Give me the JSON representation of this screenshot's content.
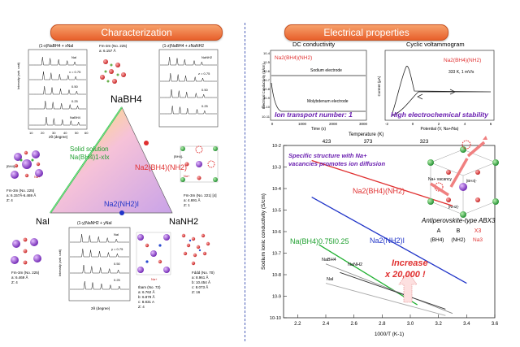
{
  "headers": {
    "left": "Characterization",
    "right": "Electrical properties"
  },
  "triangle": {
    "top": "NaBH4",
    "left": "NaI",
    "right": "NaNH2",
    "solid_solution_line1": "Solid solution",
    "solid_solution_line2": "Na(BH4)1-xIx",
    "na2_bh4_nh2": "Na2(BH4)(NH2)",
    "na2_nh2_i": "Na2(NH2)I"
  },
  "xrd": {
    "top_left_title": "(1-x)NaBH4 + xNaI",
    "top_right_title": "(1-z)NaBH4 + zNaNH2",
    "bottom_title": "(1-y)NaNH2 + yNaI",
    "ylabel": "Intensity (arb. unit)",
    "xlabel": "2θ (degree)",
    "top_left_series": [
      "NaI",
      "x = 0.75",
      "0.50",
      "0.25",
      "NaBH4"
    ],
    "top_right_series": [
      "NaNH2",
      "z = 0.75",
      "0.50",
      "0.25"
    ],
    "bottom_series": [
      "NaI",
      "y = 0.75",
      "0.50",
      "0.25"
    ],
    "ticks": [
      "10",
      "20",
      "30",
      "40",
      "50",
      "60"
    ]
  },
  "structures": {
    "s1": {
      "group": "Fm-3m (No. 225)",
      "a": "a: 6.157 Å"
    },
    "s2": {
      "group": "Fm-3m (No. 225)",
      "a": "a: 6.157Å-6.469 Å",
      "z": "Z: 4"
    },
    "s3": {
      "group": "Fm-3m (No. 221) [4]",
      "a": "a: 4.691 Å",
      "z": "Z: 1"
    },
    "s4": {
      "group": "Fm-3m (No. 225)",
      "a": "a: 6.469 Å",
      "z": "Z: 4"
    },
    "s5": {
      "group": "Ibam (No. 72)",
      "a": "a: 6.762 Å",
      "b": "b: 6.879 Å",
      "c": "c: 8.831 A",
      "z": "Z: 4"
    },
    "s6": {
      "group": "Fddd (No. 70)",
      "a": "a: 8.961 Å",
      "b": "b: 10.454 Å",
      "c": "c: 8.073 Å",
      "z": "Z: 16"
    },
    "bh4_label": "[BH4]-",
    "na_label": "Na+"
  },
  "dc": {
    "title": "DC conductivity",
    "compound": "Na2(BH4)(NH2)",
    "curve1": "Sodium electrode",
    "curve2": "Molybdenum electrode",
    "xlabel": "Time (s)",
    "ylabel": "Electrical Conductivity (S/cm)",
    "xticks": [
      "0",
      "1000",
      "2000",
      "3000"
    ],
    "yticks": [
      "10-4",
      "10-5",
      "10-6",
      "10-7",
      "10-8",
      "10-9",
      "10-10",
      "10-11"
    ],
    "caption": "Ion transport number: 1"
  },
  "cv": {
    "title": "Cyclic voltammogram",
    "compound": "Na2(BH4)(NH2)",
    "condition": "333 K, 1 mV/s",
    "xlabel": "Potential (V, Na+/Na)",
    "ylabel": "Current (μA)",
    "xticks": [
      "-2",
      "0",
      "2",
      "4",
      "6"
    ],
    "caption": "High electrochemical stability"
  },
  "main_plot": {
    "top_axis_label": "Temperature (K)",
    "top_ticks": [
      "423",
      "373",
      "323"
    ],
    "ylabel": "Sodium ionic conductivity (S/cm)",
    "xlabel": "1000/T (K-1)",
    "xticks": [
      "2.2",
      "2.4",
      "2.6",
      "2.8",
      "3.0",
      "3.2",
      "3.4",
      "3.6"
    ],
    "yticks": [
      "10-2",
      "10-3",
      "10-4",
      "10-5",
      "10-6",
      "10-7",
      "10-8",
      "10-9",
      "10-10"
    ],
    "note_line1": "Specific structure with Na+",
    "note_line2": "vacancies promotes ion diffusion",
    "series_labels": {
      "na2bh4nh2": "Na2(BH4)(NH2)",
      "na2nh2i": "Na2(NH2)I",
      "nabh4i": "Na(BH4)0.75I0.25",
      "nabh4": "NaBH4",
      "nanh2": "NaNH2",
      "nai": "NaI"
    },
    "increase_line1": "Increase",
    "increase_line2": "x 20,000 !"
  },
  "chart_data": {
    "type": "line",
    "xlabel": "1000/T (K-1)",
    "ylabel": "Sodium ionic conductivity (S/cm)",
    "xlim": [
      2.1,
      3.6
    ],
    "ylim": [
      -10,
      -2
    ],
    "y_scale": "log10",
    "series": [
      {
        "name": "Na2(BH4)(NH2)",
        "color": "#e03030",
        "x": [
          2.3,
          3.3
        ],
        "y": [
          -2.7,
          -4.8
        ]
      },
      {
        "name": "Na2(NH2)I",
        "color": "#2034c8",
        "x": [
          2.3,
          3.4
        ],
        "y": [
          -4.4,
          -8.4
        ]
      },
      {
        "name": "Na(BH4)0.75I0.25",
        "color": "#20b030",
        "x": [
          2.35,
          3.05
        ],
        "y": [
          -6.6,
          -9.4
        ]
      },
      {
        "name": "NaBH4",
        "color": "#888888",
        "x": [
          2.4,
          3.3
        ],
        "y": [
          -7.5,
          -9.8
        ]
      },
      {
        "name": "NaNH2",
        "color": "#333333",
        "x": [
          2.5,
          3.25
        ],
        "y": [
          -7.9,
          -9.6
        ]
      },
      {
        "name": "NaI",
        "color": "#aaaaaa",
        "x": [
          2.4,
          3.25
        ],
        "y": [
          -8.4,
          -9.9
        ]
      }
    ]
  },
  "antiperovskite": {
    "title": "Antiperovskite-type ABX3",
    "cols": [
      "A",
      "B",
      "X3"
    ],
    "values": [
      "(BH4)",
      "(NH2)",
      "Na3"
    ],
    "vacancy": "Na+ vacancy",
    "bh4": "[BH4]-",
    "nh2": "[NH2]-"
  },
  "colors": {
    "accent": "#e8602c",
    "red": "#e03030",
    "blue": "#2034c8",
    "green": "#20b030",
    "purple": "#6a1fb0"
  }
}
